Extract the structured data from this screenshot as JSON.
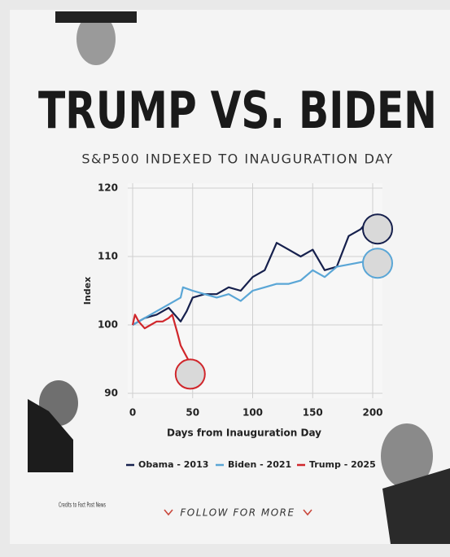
{
  "chart_data": {
    "type": "line",
    "title": "TRUMP VS. BIDEN",
    "subtitle": "S&P500 INDEXED TO INAUGURATION DAY",
    "x_label": "Days from Inauguration Day",
    "y_label": "Index",
    "xlim": [
      0,
      200
    ],
    "xticks": [
      0,
      50,
      100,
      150,
      200
    ],
    "ylim": [
      90,
      120
    ],
    "yticks": [
      90,
      100,
      110,
      120
    ],
    "grid": true,
    "legend": "bottom",
    "series": [
      {
        "name": "Obama - 2013",
        "color": "#16204d",
        "x": [
          0,
          10,
          20,
          30,
          40,
          45,
          50,
          60,
          70,
          80,
          90,
          100,
          110,
          120,
          130,
          140,
          150,
          160,
          170,
          180,
          190,
          195,
          200
        ],
        "values": [
          100,
          101,
          101.5,
          102.5,
          100.5,
          102,
          104,
          104.5,
          104.5,
          105.5,
          105,
          107,
          108,
          112,
          111,
          110,
          111,
          108,
          108.5,
          113,
          114,
          115,
          114.5
        ]
      },
      {
        "name": "Biden - 2021",
        "color": "#5aa6d6",
        "x": [
          0,
          10,
          20,
          30,
          40,
          42,
          50,
          60,
          70,
          80,
          90,
          100,
          110,
          120,
          130,
          140,
          150,
          160,
          170,
          185,
          200
        ],
        "values": [
          100,
          101,
          102,
          103,
          104,
          105.5,
          105,
          104.5,
          104,
          104.5,
          103.5,
          105,
          105.5,
          106,
          106,
          106.5,
          108,
          107,
          108.5,
          109,
          109.5
        ]
      },
      {
        "name": "Trump - 2025",
        "color": "#d0262b",
        "x": [
          0,
          2,
          5,
          10,
          15,
          20,
          25,
          30,
          33,
          37,
          40,
          43,
          46,
          48
        ],
        "values": [
          100,
          101.5,
          100.5,
          99.5,
          100,
          100.5,
          100.5,
          101,
          101.5,
          99,
          97,
          96,
          95,
          94
        ]
      }
    ]
  },
  "credits": "Credits to Fact Post News",
  "cta": "FOLLOW FOR MORE"
}
